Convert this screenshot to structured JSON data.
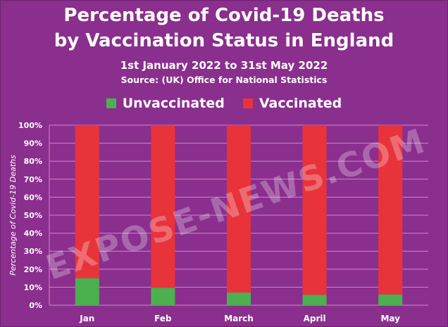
{
  "title_line1": "Percentage of Covid-19 Deaths",
  "title_line2": "by Vaccination Status in England",
  "subtitle": "1st January 2022 to 31st May 2022",
  "source": "Source:  (UK) Office for National Statistics",
  "watermark": "EXPOSE-NEWS.COM",
  "colors": {
    "background": "#8a2f8d",
    "unvaccinated": "#4cb050",
    "vaccinated": "#e8333a",
    "gridline": "#c98bcc"
  },
  "legend": [
    {
      "label": "Unvaccinated",
      "color": "#4cb050"
    },
    {
      "label": "Vaccinated",
      "color": "#e8333a"
    }
  ],
  "chart_data": {
    "type": "bar",
    "stacked": true,
    "categories": [
      "Jan",
      "Feb",
      "March",
      "April",
      "May"
    ],
    "series": [
      {
        "name": "Unvaccinated",
        "values": [
          15,
          9.7,
          7,
          5.8,
          6
        ],
        "color": "#4cb050"
      },
      {
        "name": "Vaccinated",
        "values": [
          85,
          90.3,
          93,
          94.2,
          94
        ],
        "color": "#e8333a"
      }
    ],
    "ylabel": "Percentage of Covid-19 Deaths",
    "ylim": [
      0,
      100
    ],
    "yticks": [
      "0%",
      "10%",
      "20%",
      "30%",
      "40%",
      "50%",
      "60%",
      "70%",
      "80%",
      "90%",
      "100%"
    ],
    "grid": true,
    "legend_position": "top-center"
  }
}
